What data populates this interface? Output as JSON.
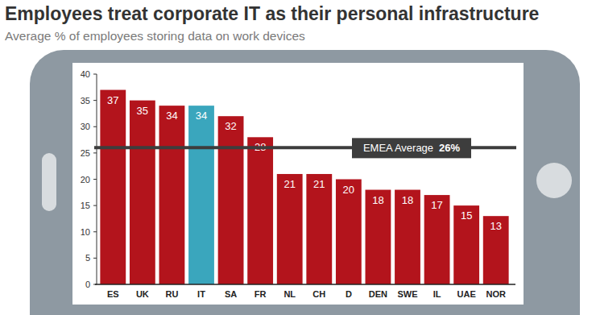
{
  "chart_data": {
    "type": "bar",
    "title": "Employees treat corporate IT as their personal infrastructure",
    "subtitle": "Average % of employees storing data on work devices",
    "categories": [
      "ES",
      "UK",
      "RU",
      "IT",
      "SA",
      "FR",
      "NL",
      "CH",
      "D",
      "DEN",
      "SWE",
      "IL",
      "UAE",
      "NOR"
    ],
    "values": [
      37,
      35,
      34,
      34,
      32,
      28,
      21,
      21,
      20,
      18,
      18,
      17,
      15,
      13
    ],
    "colors": [
      "#b3141c",
      "#b3141c",
      "#b3141c",
      "#3aa6bd",
      "#b3141c",
      "#b3141c",
      "#b3141c",
      "#b3141c",
      "#b3141c",
      "#b3141c",
      "#b3141c",
      "#b3141c",
      "#b3141c",
      "#b3141c"
    ],
    "ylim": [
      0,
      40
    ],
    "yticks": [
      0,
      5,
      10,
      15,
      20,
      25,
      30,
      35,
      40
    ],
    "grid": false,
    "data_labels": true,
    "reference_line": {
      "label": "EMEA Average",
      "value": 26,
      "value_label": "26%"
    }
  }
}
